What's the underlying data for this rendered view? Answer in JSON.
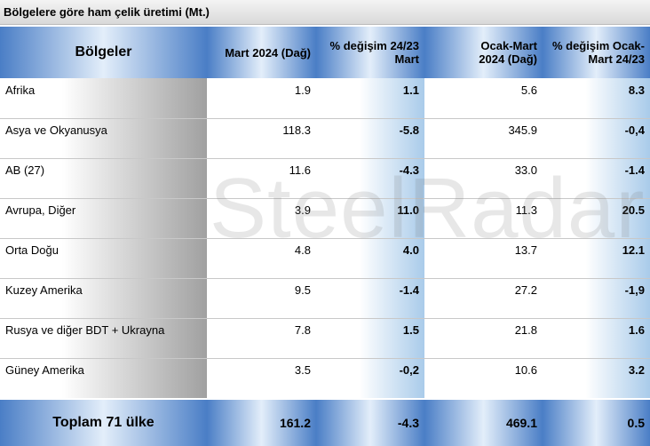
{
  "header": {
    "title": "Bölgelere göre ham çelik üretimi (Mt.)"
  },
  "watermark": "SteelRadar",
  "table": {
    "columns": [
      "Bölgeler",
      "Mart 2024 (Dağ)",
      "% değişim 24/23\nMart",
      "Ocak-Mart\n2024 (Dağ)",
      "% değişim Ocak-\nMart 24/23"
    ],
    "rows": [
      [
        "Afrika",
        "1.9",
        "1.1",
        "5.6",
        "8.3"
      ],
      [
        "Asya ve Okyanusya",
        "118.3",
        "-5.8",
        "345.9",
        "-0,4"
      ],
      [
        "AB (27)",
        "11.6",
        "-4.3",
        "33.0",
        "-1.4"
      ],
      [
        "Avrupa, Diğer",
        "3.9",
        "11.0",
        "11.3",
        "20.5"
      ],
      [
        "Orta Doğu",
        "4.8",
        "4.0",
        "13.7",
        "12.1"
      ],
      [
        "Kuzey Amerika",
        "9.5",
        "-1.4",
        "27.2",
        "-1,9"
      ],
      [
        "Rusya ve diğer BDT + Ukrayna",
        "7.8",
        "1.5",
        "21.8",
        "1.6"
      ],
      [
        "Güney Amerika",
        "3.5",
        "-0,2",
        "10.6",
        "3.2"
      ]
    ],
    "total": [
      "Toplam 71 ülke",
      "161.2",
      "-4.3",
      "469.1",
      "0.5"
    ]
  }
}
